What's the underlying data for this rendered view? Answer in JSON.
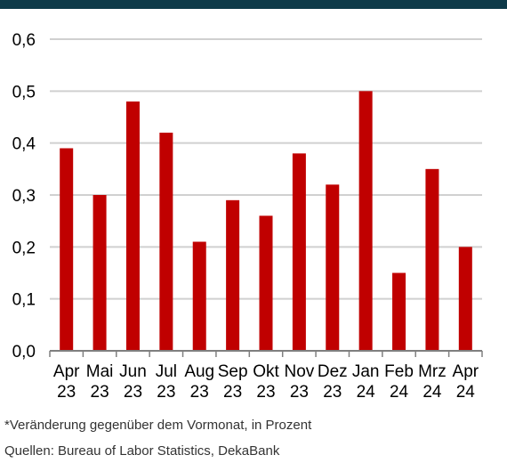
{
  "colors": {
    "bar": "#c00000",
    "header_bar": "#0e3a49",
    "grid": "#d0d0d0",
    "axis": "#7f7f7f",
    "text": "#000000"
  },
  "chart_data": {
    "type": "bar",
    "title": "",
    "xlabel": "",
    "ylabel": "",
    "ylim": [
      0,
      0.6
    ],
    "yticks": [
      "0,0",
      "0,1",
      "0,2",
      "0,3",
      "0,4",
      "0,5",
      "0,6"
    ],
    "ytick_values": [
      0,
      0.1,
      0.2,
      0.3,
      0.4,
      0.5,
      0.6
    ],
    "grid": true,
    "categories": [
      [
        "Apr",
        "23"
      ],
      [
        "Mai",
        "23"
      ],
      [
        "Jun",
        "23"
      ],
      [
        "Jul",
        "23"
      ],
      [
        "Aug",
        "23"
      ],
      [
        "Sep",
        "23"
      ],
      [
        "Okt",
        "23"
      ],
      [
        "Nov",
        "23"
      ],
      [
        "Dez",
        "23"
      ],
      [
        "Jan",
        "24"
      ],
      [
        "Feb",
        "24"
      ],
      [
        "Mrz",
        "24"
      ],
      [
        "Apr",
        "24"
      ]
    ],
    "values": [
      0.39,
      0.3,
      0.48,
      0.42,
      0.21,
      0.29,
      0.26,
      0.38,
      0.32,
      0.5,
      0.15,
      0.35,
      0.2
    ]
  },
  "footnotes": {
    "note": "*Veränderung gegenüber dem Vormonat, in Prozent",
    "sources": "Quellen: Bureau of Labor Statistics, DekaBank"
  }
}
